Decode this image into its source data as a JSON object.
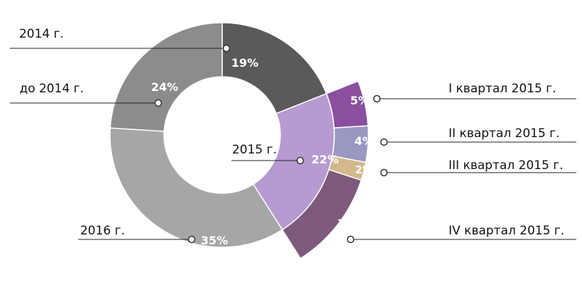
{
  "chart_data": {
    "type": "pie",
    "variant": "donut-with-exploded-breakdown",
    "slices": [
      {
        "label": "2014 г.",
        "value": 19,
        "value_label": "19%",
        "color": "#5a5a5a"
      },
      {
        "label": "2015 г.",
        "value": 22,
        "value_label": "22%",
        "color": "#b69ad0"
      },
      {
        "label": "2016 г.",
        "value": 35,
        "value_label": "35%",
        "color": "#a6a6a6"
      },
      {
        "label": "до 2014 г.",
        "value": 24,
        "value_label": "24%",
        "color": "#8c8c8c"
      }
    ],
    "breakdown": {
      "parent": "2015 г.",
      "slices": [
        {
          "label": "I квартал 2015 г.",
          "value": 5,
          "value_label": "5%",
          "color": "#8a4f9e"
        },
        {
          "label": "II квартал 2015 г.",
          "value": 4,
          "value_label": "4%",
          "color": "#9a98c0"
        },
        {
          "label": "III квартал 2015 г.",
          "value": 2,
          "value_label": "2%",
          "color": "#d1b98a"
        },
        {
          "label": "IV квартал 2015 г.",
          "value": 11,
          "value_label": "11%",
          "color": "#7d5a7b"
        }
      ]
    }
  }
}
